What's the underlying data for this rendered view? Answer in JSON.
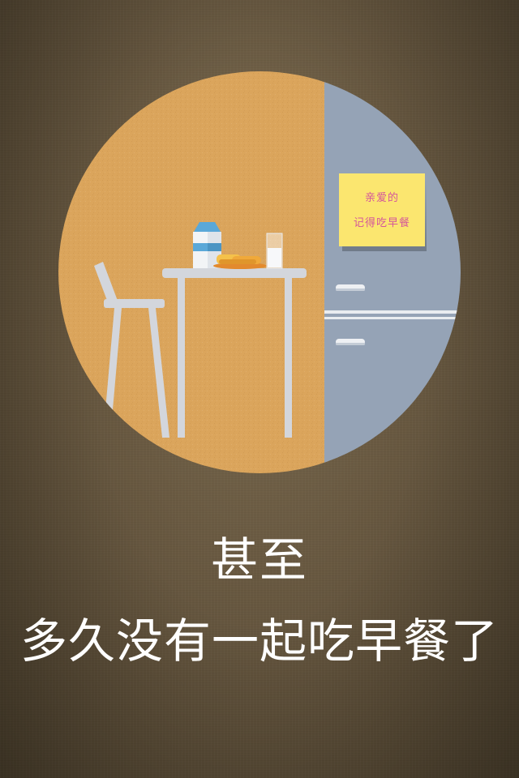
{
  "sticky_note": {
    "line1": "亲爱的",
    "line2": "记得吃早餐"
  },
  "caption": {
    "line1": "甚至",
    "line2": "多久没有一起吃早餐了"
  },
  "colors": {
    "wall": "#dba55c",
    "fridge": "#95a3b6",
    "furniture": "#d3d6dc",
    "note": "#fbe66f",
    "note_text": "#d4579b",
    "background": "#6a5a42"
  }
}
